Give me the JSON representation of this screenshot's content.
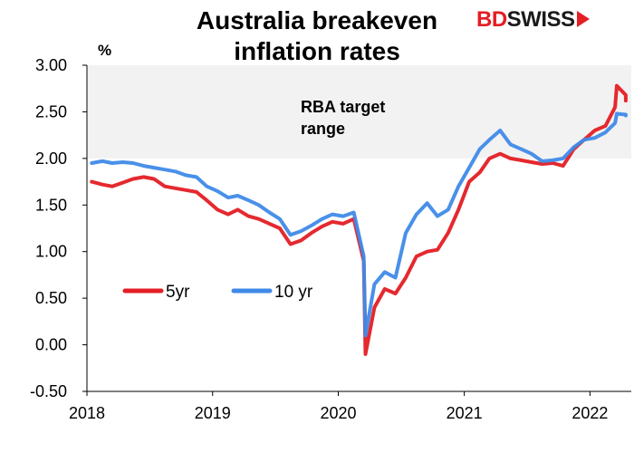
{
  "header": {
    "title_line1": "Australia breakeven",
    "title_line2": "inflation rates",
    "logo_text_red": "BD",
    "logo_text_dark": "SWISS"
  },
  "chart_data": {
    "type": "line",
    "ylabel": "%",
    "ylim": [
      -0.5,
      3.0
    ],
    "yticks": [
      -0.5,
      0.0,
      0.5,
      1.0,
      1.5,
      2.0,
      2.5,
      3.0
    ],
    "ytick_labels": [
      "-0.50",
      "0.00",
      "0.50",
      "1.00",
      "1.50",
      "2.00",
      "2.50",
      "3.00"
    ],
    "xlim": [
      "2018-01-01",
      "2022-05-01"
    ],
    "xtick_labels": [
      "2018",
      "2019",
      "2020",
      "2021",
      "2022"
    ],
    "xticks": [
      "2018-01-01",
      "2019-01-01",
      "2020-01-01",
      "2021-01-01",
      "2022-01-01"
    ],
    "grid": false,
    "legend_position": "lower-left",
    "band": {
      "from": 2.0,
      "to": 3.0,
      "label_line1": "RBA target",
      "label_line2": "range",
      "color": "#f2f2f2"
    },
    "x": [
      "2018-01",
      "2018-02",
      "2018-03",
      "2018-04",
      "2018-05",
      "2018-06",
      "2018-07",
      "2018-08",
      "2018-09",
      "2018-10",
      "2018-11",
      "2018-12",
      "2019-01",
      "2019-02",
      "2019-03",
      "2019-04",
      "2019-05",
      "2019-06",
      "2019-07",
      "2019-08",
      "2019-09",
      "2019-10",
      "2019-11",
      "2019-12",
      "2020-01",
      "2020-02",
      "2020-03",
      "2020-03-20",
      "2020-04",
      "2020-05",
      "2020-06",
      "2020-07",
      "2020-08",
      "2020-09",
      "2020-10",
      "2020-11",
      "2020-12",
      "2021-01",
      "2021-02",
      "2021-03",
      "2021-04",
      "2021-05",
      "2021-06",
      "2021-07",
      "2021-08",
      "2021-09",
      "2021-10",
      "2021-11",
      "2021-12",
      "2022-01",
      "2022-02",
      "2022-03",
      "2022-03-20",
      "2022-04",
      "2022-04-15"
    ],
    "series": [
      {
        "name": "5yr",
        "color": "#e31e24",
        "values": [
          1.75,
          1.72,
          1.7,
          1.74,
          1.78,
          1.8,
          1.78,
          1.7,
          1.68,
          1.66,
          1.64,
          1.55,
          1.45,
          1.4,
          1.45,
          1.38,
          1.35,
          1.3,
          1.25,
          1.08,
          1.12,
          1.2,
          1.27,
          1.32,
          1.3,
          1.35,
          0.9,
          -0.1,
          0.4,
          0.6,
          0.55,
          0.72,
          0.95,
          1.0,
          1.02,
          1.2,
          1.45,
          1.75,
          1.85,
          2.0,
          2.05,
          2.0,
          1.98,
          1.96,
          1.94,
          1.95,
          1.92,
          2.1,
          2.2,
          2.3,
          2.35,
          2.55,
          2.78,
          2.68,
          2.62
        ]
      },
      {
        "name": "10 yr",
        "color": "#3f8ae8",
        "values": [
          1.95,
          1.97,
          1.95,
          1.96,
          1.95,
          1.92,
          1.9,
          1.88,
          1.86,
          1.82,
          1.8,
          1.7,
          1.65,
          1.58,
          1.6,
          1.55,
          1.5,
          1.42,
          1.35,
          1.18,
          1.22,
          1.28,
          1.35,
          1.4,
          1.38,
          1.42,
          0.95,
          0.1,
          0.65,
          0.78,
          0.72,
          1.2,
          1.4,
          1.52,
          1.38,
          1.45,
          1.7,
          1.9,
          2.1,
          2.2,
          2.3,
          2.15,
          2.1,
          2.05,
          1.97,
          1.98,
          2.0,
          2.12,
          2.2,
          2.22,
          2.28,
          2.38,
          2.48,
          2.47,
          2.46
        ]
      }
    ]
  }
}
